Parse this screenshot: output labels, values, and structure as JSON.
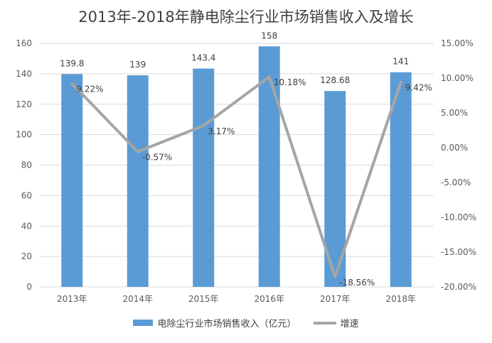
{
  "chart_data": {
    "type": "bar",
    "title": "2013年-2018年静电除尘行业市场销售收入及增长",
    "categories": [
      "2013年",
      "2014年",
      "2015年",
      "2016年",
      "2017年",
      "2018年"
    ],
    "series": [
      {
        "name": "电除尘行业市场销售收入（亿元）",
        "type": "bar",
        "axis": "left",
        "values": [
          139.8,
          139,
          143.4,
          158,
          128.68,
          141
        ],
        "labels": [
          "139.8",
          "139",
          "143.4",
          "158",
          "128.68",
          "141"
        ]
      },
      {
        "name": "增速",
        "type": "line",
        "axis": "right",
        "values": [
          9.22,
          -0.57,
          3.17,
          10.18,
          -18.56,
          9.42
        ],
        "labels": [
          "9.22%",
          "-0.57%",
          "3.17%",
          "10.18%",
          "-18.56%",
          "9.42%"
        ]
      }
    ],
    "y_left": {
      "min": 0,
      "max": 160,
      "step": 20,
      "ticks": [
        "0",
        "20",
        "40",
        "60",
        "80",
        "100",
        "120",
        "140",
        "160"
      ]
    },
    "y_right": {
      "min": -20,
      "max": 15,
      "step": 5,
      "ticks": [
        "-20.00%",
        "-15.00%",
        "-10.00%",
        "-5.00%",
        "0.00%",
        "5.00%",
        "10.00%",
        "15.00%"
      ]
    },
    "legend_position": "bottom",
    "grid": true,
    "colors": {
      "bar": "#5b9bd5",
      "line": "#a5a5a5",
      "grid": "#d9d9d9",
      "text": "#595959"
    }
  }
}
